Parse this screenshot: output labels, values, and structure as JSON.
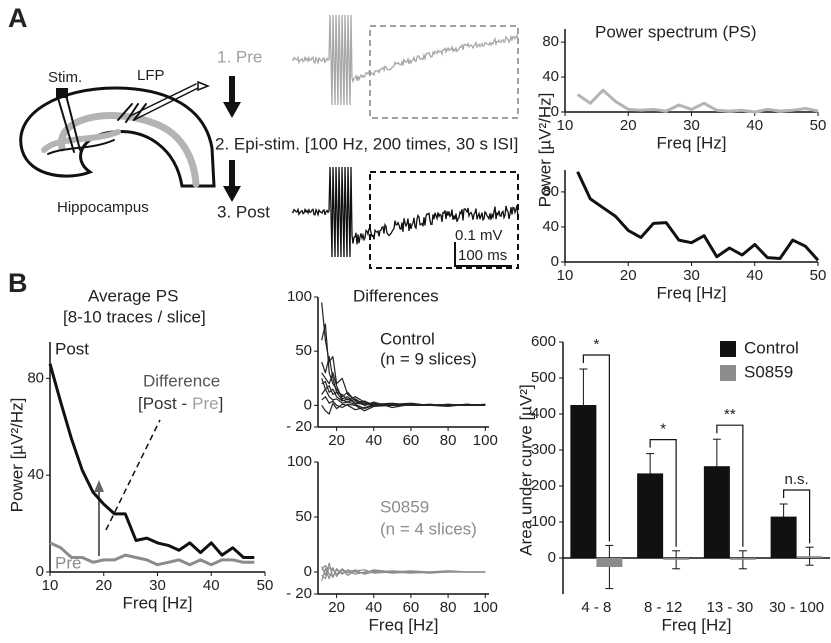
{
  "panels": [
    "A",
    "B"
  ],
  "diagram": {
    "stim": "Stim.",
    "lfp": "LFP",
    "hippocampus": "Hippocampus",
    "steps": [
      "1. Pre",
      "2. Epi-stim. [100 Hz, 200 times, 30 s ISI]",
      "3. Post"
    ],
    "scale": [
      "0.1 mV",
      "100 ms"
    ]
  },
  "chart_data": [
    {
      "type": "line",
      "title": "Power spectrum (PS)",
      "ylabel": "Power [µV²/Hz]",
      "xlabel": "Freq [Hz]",
      "x": [
        12,
        14,
        16,
        18,
        20,
        22,
        24,
        26,
        28,
        30,
        32,
        34,
        36,
        38,
        40,
        42,
        44,
        46,
        48,
        50
      ],
      "series": [
        {
          "color": "#b4b4b4",
          "values": [
            20,
            10,
            25,
            12,
            3,
            2,
            3,
            1,
            8,
            3,
            10,
            2,
            1,
            2,
            0,
            3,
            1,
            2,
            4,
            1
          ]
        }
      ],
      "xlim": [
        10,
        50
      ],
      "ylim": [
        0,
        95
      ],
      "xticks": [
        10,
        20,
        30,
        40,
        50
      ],
      "yticks": [
        0,
        40,
        80
      ]
    },
    {
      "type": "line",
      "xlabel": "Freq [Hz]",
      "x": [
        12,
        14,
        16,
        18,
        20,
        22,
        24,
        26,
        28,
        30,
        32,
        34,
        36,
        38,
        40,
        42,
        44,
        46,
        48,
        50
      ],
      "series": [
        {
          "color": "#111111",
          "values": [
            103,
            72,
            62,
            52,
            36,
            28,
            44,
            45,
            25,
            22,
            30,
            6,
            16,
            8,
            20,
            5,
            4,
            25,
            18,
            2
          ]
        }
      ],
      "xlim": [
        10,
        50
      ],
      "ylim": [
        0,
        105
      ],
      "xticks": [
        10,
        20,
        30,
        40,
        50
      ],
      "yticks": [
        0,
        40,
        80
      ]
    },
    {
      "type": "line",
      "title": "Average PS",
      "subtitle": "[8-10 traces / slice]",
      "ylabel": "Power [µV²/Hz]",
      "xlabel": "Freq [Hz]",
      "annotations": {
        "difference": "Difference",
        "expression": [
          "[Post -",
          "Pre",
          "]"
        ]
      },
      "x": [
        10,
        12,
        14,
        16,
        18,
        20,
        22,
        24,
        26,
        28,
        30,
        32,
        34,
        36,
        38,
        40,
        42,
        44,
        46,
        48
      ],
      "series": [
        {
          "name": "Post",
          "color": "#111111",
          "values": [
            86,
            70,
            55,
            42,
            33,
            28,
            24,
            24,
            13,
            14,
            12,
            11,
            9,
            12,
            8,
            12,
            7,
            10,
            6,
            6
          ]
        },
        {
          "name": "Pre",
          "color": "#8c8c8c",
          "values": [
            12,
            10,
            6,
            6,
            4,
            5,
            5,
            7,
            6,
            5,
            3,
            4,
            5,
            3,
            5,
            3,
            5,
            5,
            4,
            4
          ]
        }
      ],
      "xlim": [
        10,
        50
      ],
      "ylim": [
        0,
        95
      ],
      "xticks": [
        10,
        20,
        30,
        40,
        50
      ],
      "yticks": [
        0,
        40,
        80
      ]
    },
    {
      "type": "line",
      "title": "Differences",
      "annotations": [
        "Control",
        "(n = 9 slices)"
      ],
      "x": [
        12,
        14,
        16,
        18,
        20,
        23,
        26,
        30,
        35,
        40,
        50,
        60,
        70,
        80,
        90,
        100
      ],
      "series": [
        {
          "color": "#222222",
          "values": [
            95,
            60,
            40,
            45,
            20,
            25,
            10,
            5,
            2,
            0,
            1,
            0,
            1,
            0,
            0,
            1
          ]
        },
        {
          "color": "#222222",
          "values": [
            60,
            75,
            30,
            20,
            15,
            8,
            12,
            4,
            0,
            3,
            -2,
            1,
            0,
            1,
            0,
            0
          ]
        },
        {
          "color": "#222222",
          "values": [
            40,
            30,
            45,
            25,
            12,
            10,
            5,
            8,
            3,
            1,
            2,
            0,
            0,
            -1,
            1,
            0
          ]
        },
        {
          "color": "#222222",
          "values": [
            30,
            25,
            20,
            30,
            18,
            6,
            8,
            2,
            4,
            0,
            1,
            2,
            0,
            0,
            1,
            0
          ]
        },
        {
          "color": "#222222",
          "values": [
            25,
            15,
            18,
            10,
            12,
            5,
            3,
            6,
            0,
            2,
            0,
            1,
            0,
            1,
            0,
            0
          ]
        },
        {
          "color": "#222222",
          "values": [
            20,
            22,
            12,
            15,
            8,
            4,
            6,
            2,
            1,
            0,
            1,
            0,
            1,
            0,
            0,
            1
          ]
        },
        {
          "color": "#222222",
          "values": [
            10,
            15,
            8,
            5,
            6,
            2,
            3,
            1,
            -3,
            0,
            0,
            1,
            0,
            0,
            1,
            0
          ]
        },
        {
          "color": "#222222",
          "values": [
            5,
            8,
            2,
            4,
            0,
            -2,
            1,
            0,
            -5,
            -1,
            0,
            0,
            0,
            0,
            0,
            0
          ]
        },
        {
          "color": "#222222",
          "values": [
            0,
            -5,
            -8,
            2,
            -3,
            1,
            0,
            -4,
            -2,
            0,
            0,
            0,
            0,
            0,
            0,
            0
          ]
        }
      ],
      "xlim": [
        10,
        102
      ],
      "ylim": [
        -20,
        100
      ],
      "xticks": [
        20,
        40,
        60,
        80,
        100
      ],
      "yticks": [
        {
          "value": -20,
          "label": "- 20"
        },
        0,
        50,
        100
      ]
    },
    {
      "type": "line",
      "xlabel": "Freq [Hz]",
      "annotations": [
        "S0859",
        "(n = 4 slices)"
      ],
      "x": [
        12,
        14,
        16,
        18,
        20,
        23,
        26,
        30,
        35,
        40,
        50,
        60,
        70,
        80,
        90,
        100
      ],
      "series": [
        {
          "color": "#8c8c8c",
          "values": [
            5,
            -3,
            8,
            -5,
            3,
            -2,
            2,
            0,
            -1,
            2,
            0,
            -1,
            0,
            1,
            0,
            0
          ]
        },
        {
          "color": "#8c8c8c",
          "values": [
            -8,
            3,
            -6,
            4,
            -4,
            2,
            -3,
            1,
            2,
            -1,
            0,
            1,
            0,
            0,
            0,
            0
          ]
        },
        {
          "color": "#8c8c8c",
          "values": [
            2,
            6,
            -2,
            -4,
            2,
            -1,
            1,
            -2,
            0,
            1,
            -1,
            0,
            0,
            1,
            0,
            0
          ]
        },
        {
          "color": "#8c8c8c",
          "values": [
            -3,
            -6,
            4,
            2,
            -2,
            3,
            -1,
            2,
            -2,
            0,
            1,
            0,
            -1,
            0,
            0,
            0
          ]
        }
      ],
      "xlim": [
        10,
        102
      ],
      "ylim": [
        -20,
        100
      ],
      "xticks": [
        20,
        40,
        60,
        80,
        100
      ],
      "yticks": [
        {
          "value": -20,
          "label": "- 20"
        },
        0,
        50,
        100
      ]
    },
    {
      "type": "bar",
      "ylabel": "Area under curve [µV²]",
      "xlabel": "Freq [Hz]",
      "categories": [
        "4 - 8",
        "8 - 12",
        "13 - 30",
        "30 - 100"
      ],
      "series": [
        {
          "name": "Control",
          "color": "#111111",
          "values": [
            425,
            235,
            255,
            115
          ],
          "errors": [
            100,
            55,
            75,
            35
          ]
        },
        {
          "name": "S0859",
          "color": "#8c8c8c",
          "values": [
            -25,
            -5,
            -5,
            5
          ],
          "errors": [
            60,
            25,
            25,
            25
          ]
        }
      ],
      "significance": [
        "*",
        "*",
        "**",
        "n.s."
      ],
      "ylim": [
        -100,
        600
      ],
      "yticks": [
        0,
        100,
        200,
        300,
        400,
        500,
        600
      ],
      "legend": "top-right"
    }
  ]
}
